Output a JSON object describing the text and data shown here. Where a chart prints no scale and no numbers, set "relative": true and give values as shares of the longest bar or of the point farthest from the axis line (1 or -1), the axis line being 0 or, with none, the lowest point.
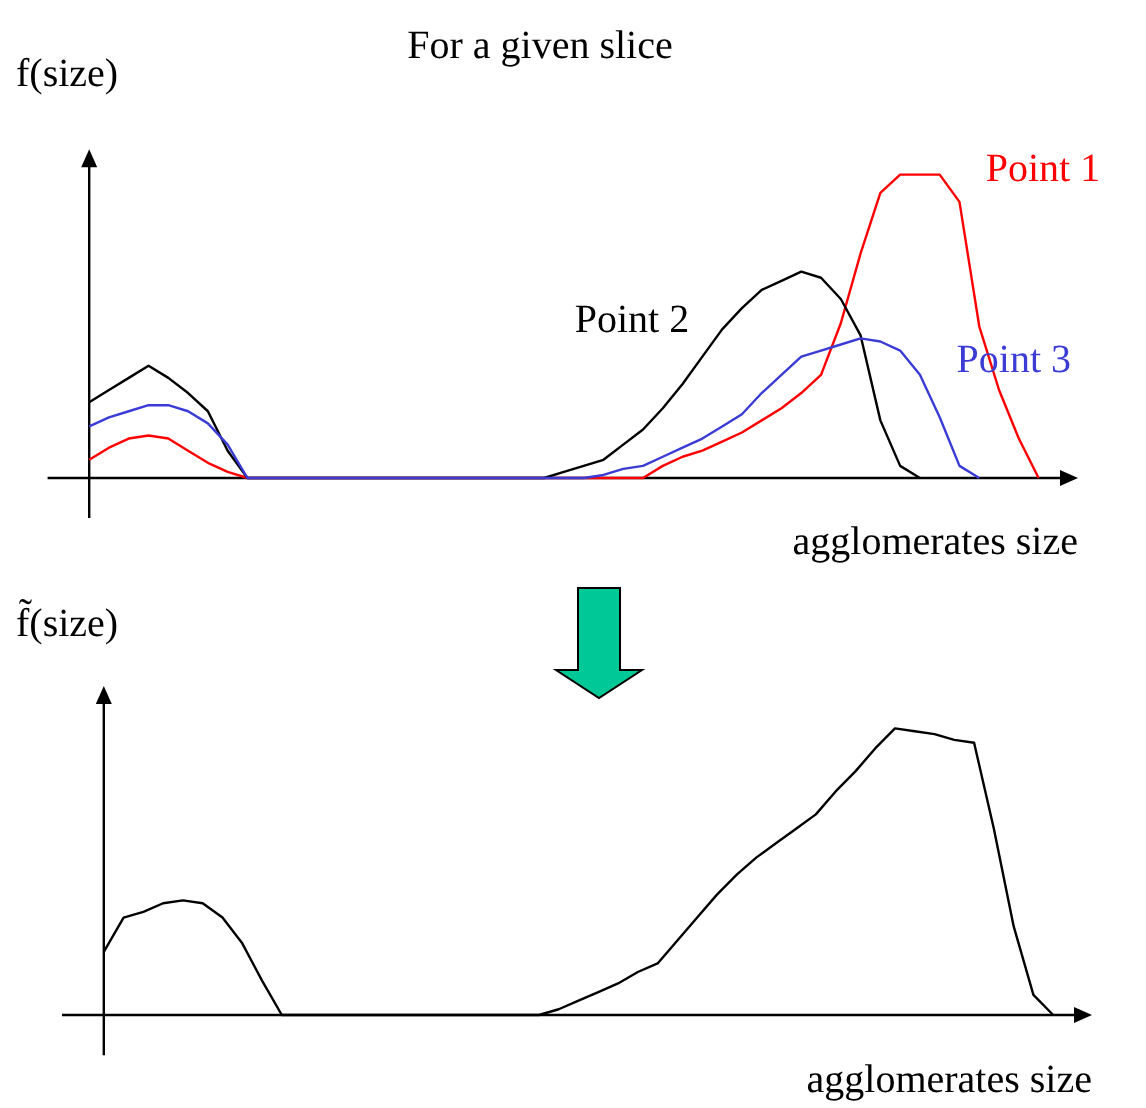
{
  "chart_data": [
    {
      "type": "line",
      "title": "For a given slice",
      "ylabel": "f(size)",
      "xlabel": "agglomerates size",
      "relative": true,
      "categories": [
        null,
        null,
        null,
        null,
        null,
        null,
        null,
        null,
        null,
        null,
        null,
        null,
        null,
        null,
        null,
        null,
        null,
        null,
        null,
        null,
        null,
        null,
        null,
        null,
        null,
        null,
        null,
        null,
        null,
        null,
        null,
        null,
        null,
        null,
        null,
        null,
        null,
        null,
        null,
        null,
        null,
        null,
        null,
        null,
        null,
        null,
        null,
        null,
        null
      ],
      "series": [
        {
          "name": "Point 1",
          "color": "#ff0000",
          "values": [
            0.06,
            0.1,
            0.13,
            0.14,
            0.13,
            0.09,
            0.05,
            0.02,
            0,
            0,
            0,
            0,
            0,
            0,
            0,
            0,
            0,
            0,
            0,
            0,
            0,
            0,
            0,
            0,
            0,
            0,
            0,
            0,
            0,
            0.04,
            0.07,
            0.09,
            0.12,
            0.15,
            0.19,
            0.23,
            0.28,
            0.34,
            0.51,
            0.74,
            0.94,
            1,
            1,
            1,
            0.91,
            0.5,
            0.29,
            0.13,
            0
          ]
        },
        {
          "name": "Point 2",
          "color": "#000000",
          "values": [
            0.25,
            0.29,
            0.33,
            0.37,
            0.33,
            0.28,
            0.22,
            0.09,
            0,
            0,
            0,
            0,
            0,
            0,
            0,
            0,
            0,
            0,
            0,
            0,
            0,
            0,
            0,
            0,
            0.02,
            0.04,
            0.06,
            0.11,
            0.16,
            0.23,
            0.31,
            0.4,
            0.49,
            0.56,
            0.62,
            0.65,
            0.68,
            0.66,
            0.59,
            0.47,
            0.19,
            0.04,
            0,
            null,
            null,
            null,
            null,
            null,
            null
          ]
        },
        {
          "name": "Point 3",
          "color": "#3b3bd6",
          "values": [
            0.17,
            0.2,
            0.22,
            0.24,
            0.24,
            0.22,
            0.18,
            0.11,
            0,
            0,
            0,
            0,
            0,
            0,
            0,
            0,
            0,
            0,
            0,
            0,
            0,
            0,
            0,
            0,
            0,
            0,
            0.01,
            0.03,
            0.04,
            0.07,
            0.1,
            0.13,
            0.17,
            0.21,
            0.28,
            0.34,
            0.4,
            0.42,
            0.44,
            0.46,
            0.45,
            0.42,
            0.34,
            0.2,
            0.04,
            0,
            null,
            null,
            null
          ]
        }
      ]
    },
    {
      "type": "line",
      "ylabel": "f̃(size)",
      "xlabel": "agglomerates size",
      "relative": true,
      "categories": [
        null,
        null,
        null,
        null,
        null,
        null,
        null,
        null,
        null,
        null,
        null,
        null,
        null,
        null,
        null,
        null,
        null,
        null,
        null,
        null,
        null,
        null,
        null,
        null,
        null,
        null,
        null,
        null,
        null,
        null,
        null,
        null,
        null,
        null,
        null,
        null,
        null,
        null,
        null,
        null,
        null,
        null,
        null,
        null,
        null,
        null,
        null,
        null,
        null
      ],
      "series": [
        {
          "color": "#000000",
          "values": [
            0.22,
            0.34,
            0.36,
            0.39,
            0.4,
            0.39,
            0.34,
            0.25,
            0.12,
            0,
            0,
            0,
            0,
            0,
            0,
            0,
            0,
            0,
            0,
            0,
            0,
            0,
            0,
            0.02,
            0.05,
            0.08,
            0.11,
            0.15,
            0.18,
            0.26,
            0.34,
            0.42,
            0.49,
            0.55,
            0.6,
            0.65,
            0.7,
            0.78,
            0.85,
            0.93,
            1,
            0.99,
            0.98,
            0.96,
            0.95,
            0.65,
            0.31,
            0.07,
            0
          ]
        }
      ]
    }
  ]
}
